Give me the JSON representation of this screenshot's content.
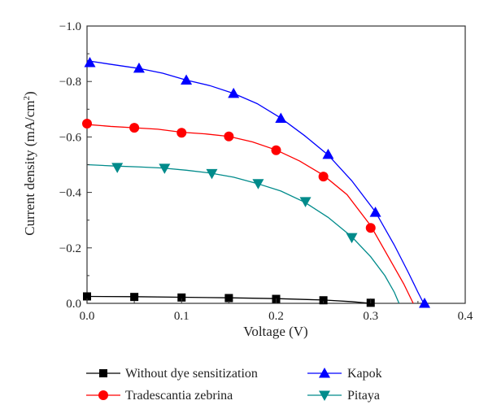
{
  "chart_data": {
    "type": "line",
    "xlabel": "Voltage (V)",
    "ylabel_prefix": "Current density (mA/cm",
    "ylabel_sup": "2",
    "ylabel_suffix": ")",
    "xlim": [
      0.0,
      0.4
    ],
    "ylim": [
      0.0,
      -1.0
    ],
    "x_ticks": [
      0.0,
      0.1,
      0.2,
      0.3,
      0.4
    ],
    "x_tick_labels": [
      "0.0",
      "0.1",
      "0.2",
      "0.3",
      "0.4"
    ],
    "y_ticks": [
      0.0,
      -0.2,
      -0.4,
      -0.6,
      -0.8,
      -1.0
    ],
    "y_tick_labels": [
      "0.0",
      "−0.2",
      "−0.4",
      "−0.6",
      "−0.8",
      "−1.0"
    ],
    "grid": false,
    "legend_position": "bottom",
    "series": [
      {
        "name": "Without dye sensitization",
        "color": "#000000",
        "marker": "square",
        "curve": [
          [
            0.0,
            -0.025
          ],
          [
            0.05,
            -0.024
          ],
          [
            0.1,
            -0.022
          ],
          [
            0.15,
            -0.02
          ],
          [
            0.2,
            -0.017
          ],
          [
            0.25,
            -0.012
          ],
          [
            0.28,
            -0.006
          ],
          [
            0.3,
            0.0
          ]
        ],
        "markers": [
          [
            0.0,
            -0.025
          ],
          [
            0.05,
            -0.023
          ],
          [
            0.1,
            -0.021
          ],
          [
            0.15,
            -0.019
          ],
          [
            0.2,
            -0.016
          ],
          [
            0.25,
            -0.011
          ],
          [
            0.3,
            -0.002
          ]
        ]
      },
      {
        "name": "Tradescantia zebrina",
        "color": "#ff0000",
        "marker": "circle",
        "curve": [
          [
            0.0,
            -0.645
          ],
          [
            0.025,
            -0.638
          ],
          [
            0.05,
            -0.633
          ],
          [
            0.075,
            -0.628
          ],
          [
            0.1,
            -0.617
          ],
          [
            0.125,
            -0.611
          ],
          [
            0.15,
            -0.602
          ],
          [
            0.175,
            -0.582
          ],
          [
            0.2,
            -0.553
          ],
          [
            0.225,
            -0.513
          ],
          [
            0.25,
            -0.462
          ],
          [
            0.275,
            -0.392
          ],
          [
            0.3,
            -0.28
          ],
          [
            0.32,
            -0.16
          ],
          [
            0.335,
            -0.07
          ],
          [
            0.345,
            0.0
          ]
        ],
        "markers": [
          [
            0.0,
            -0.648
          ],
          [
            0.05,
            -0.633
          ],
          [
            0.1,
            -0.615
          ],
          [
            0.15,
            -0.602
          ],
          [
            0.2,
            -0.552
          ],
          [
            0.25,
            -0.457
          ],
          [
            0.3,
            -0.272
          ]
        ]
      },
      {
        "name": "Kapok",
        "color": "#0000ff",
        "marker": "triangle-up",
        "curve": [
          [
            0.0,
            -0.875
          ],
          [
            0.025,
            -0.862
          ],
          [
            0.055,
            -0.847
          ],
          [
            0.08,
            -0.83
          ],
          [
            0.105,
            -0.805
          ],
          [
            0.13,
            -0.785
          ],
          [
            0.155,
            -0.757
          ],
          [
            0.18,
            -0.72
          ],
          [
            0.205,
            -0.668
          ],
          [
            0.23,
            -0.605
          ],
          [
            0.255,
            -0.535
          ],
          [
            0.28,
            -0.442
          ],
          [
            0.305,
            -0.33
          ],
          [
            0.325,
            -0.21
          ],
          [
            0.34,
            -0.11
          ],
          [
            0.35,
            -0.04
          ],
          [
            0.356,
            0.0
          ]
        ],
        "markers": [
          [
            0.003,
            -0.868
          ],
          [
            0.055,
            -0.848
          ],
          [
            0.105,
            -0.805
          ],
          [
            0.155,
            -0.757
          ],
          [
            0.205,
            -0.667
          ],
          [
            0.255,
            -0.537
          ],
          [
            0.305,
            -0.328
          ],
          [
            0.357,
            0.0
          ]
        ]
      },
      {
        "name": "Pitaya",
        "color": "#008b8b",
        "marker": "triangle-down",
        "curve": [
          [
            0.0,
            -0.5
          ],
          [
            0.03,
            -0.495
          ],
          [
            0.055,
            -0.492
          ],
          [
            0.08,
            -0.488
          ],
          [
            0.105,
            -0.48
          ],
          [
            0.13,
            -0.47
          ],
          [
            0.155,
            -0.455
          ],
          [
            0.18,
            -0.432
          ],
          [
            0.205,
            -0.405
          ],
          [
            0.23,
            -0.365
          ],
          [
            0.255,
            -0.31
          ],
          [
            0.28,
            -0.24
          ],
          [
            0.3,
            -0.168
          ],
          [
            0.315,
            -0.1
          ],
          [
            0.325,
            -0.04
          ],
          [
            0.33,
            0.0
          ]
        ],
        "markers": [
          [
            0.032,
            -0.49
          ],
          [
            0.082,
            -0.487
          ],
          [
            0.132,
            -0.468
          ],
          [
            0.181,
            -0.432
          ],
          [
            0.231,
            -0.367
          ],
          [
            0.28,
            -0.237
          ]
        ]
      }
    ]
  }
}
